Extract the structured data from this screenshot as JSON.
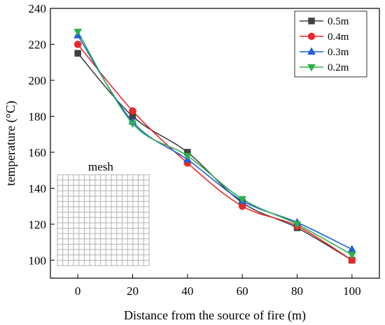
{
  "chart_data": {
    "type": "line",
    "xlabel": "Distance from the source of fire (m)",
    "ylabel": "temperature (°C)",
    "xlim": [
      -10,
      110
    ],
    "ylim": [
      90,
      240
    ],
    "x_ticks": [
      0,
      20,
      40,
      60,
      80,
      100
    ],
    "y_ticks": [
      100,
      120,
      140,
      160,
      180,
      200,
      220,
      240
    ],
    "x": [
      0,
      20,
      40,
      60,
      80,
      100
    ],
    "smooth": true,
    "series": [
      {
        "name": "0.5m",
        "values": [
          215,
          180,
          160,
          132,
          118,
          100
        ],
        "color": "#404040",
        "marker": "square"
      },
      {
        "name": "0.4m",
        "values": [
          220,
          183,
          154,
          130,
          119,
          100
        ],
        "color": "#e8292b",
        "marker": "circle"
      },
      {
        "name": "0.3m",
        "values": [
          225,
          177,
          156,
          133,
          121,
          106
        ],
        "color": "#1f5fd6",
        "marker": "triangle-up"
      },
      {
        "name": "0.2m",
        "values": [
          227,
          176,
          158,
          134,
          120,
          103
        ],
        "color": "#2bb04a",
        "marker": "triangle-down"
      }
    ],
    "legend_position": "top-right",
    "inset": {
      "label": "mesh",
      "grid_color": "#b3b3b3"
    }
  }
}
